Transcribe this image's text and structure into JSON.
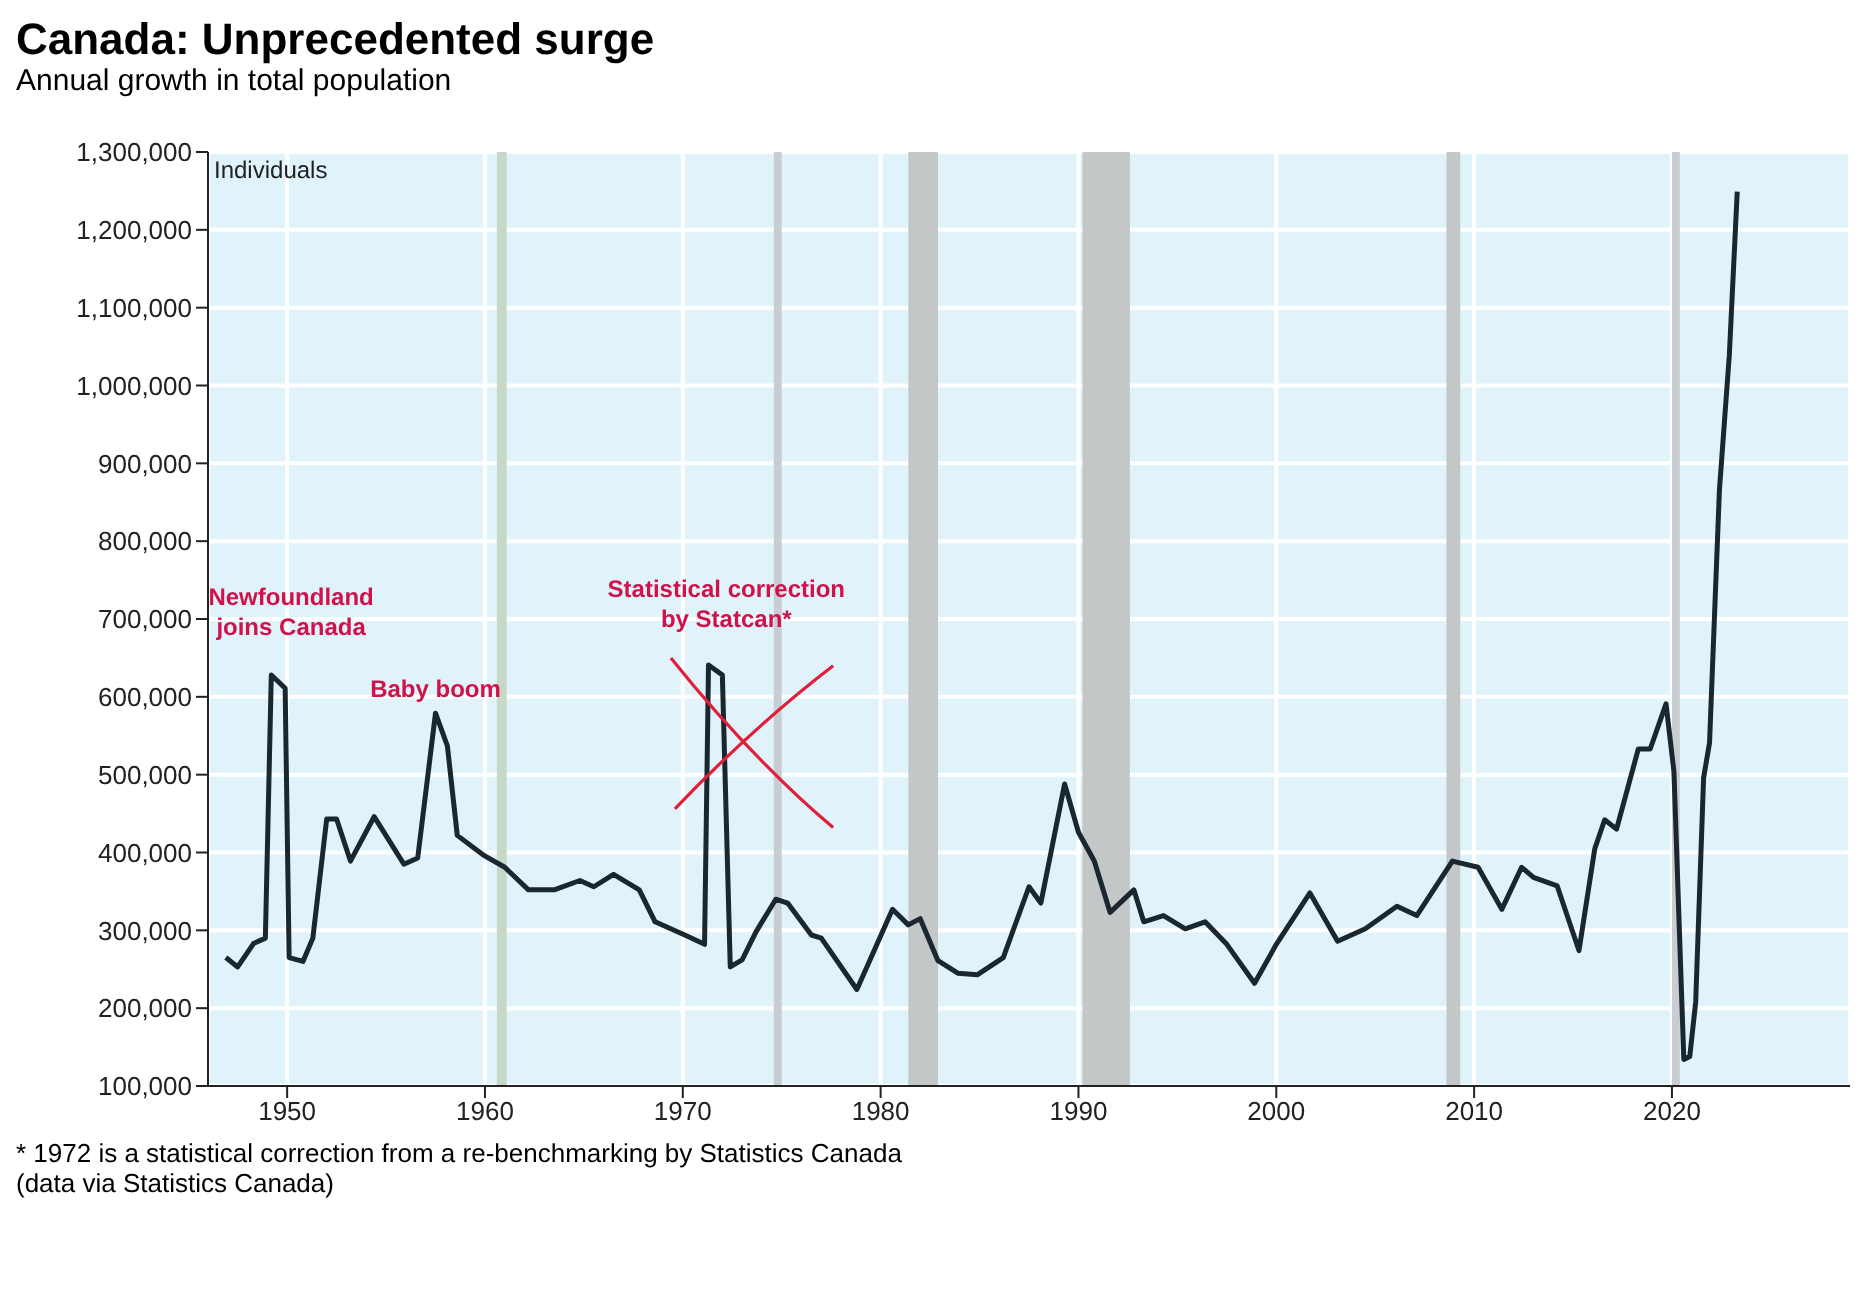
{
  "chart_data": {
    "type": "line",
    "title": "Canada: Unprecedented surge",
    "subtitle": "Annual growth in total population",
    "ylabel": "Individuals",
    "x": [
      1946.9,
      1947.5,
      1948.3,
      1948.9,
      1949.2,
      1949.9,
      1950.1,
      1950.8,
      1951.3,
      1952.0,
      1952.5,
      1953.2,
      1954.4,
      1955.9,
      1956.6,
      1957.5,
      1958.1,
      1958.6,
      1959.9,
      1961.0,
      1962.2,
      1963.5,
      1964.8,
      1965.5,
      1966.5,
      1967.8,
      1968.6,
      1970.1,
      1971.1,
      1971.3,
      1972.0,
      1972.4,
      1973.0,
      1973.7,
      1974.7,
      1975.3,
      1976.5,
      1977.0,
      1978.8,
      1980.6,
      1981.4,
      1982.0,
      1982.9,
      1983.9,
      1984.9,
      1986.2,
      1987.5,
      1988.1,
      1989.3,
      1990.0,
      1990.8,
      1991.6,
      1992.8,
      1993.3,
      1994.3,
      1995.4,
      1996.4,
      1997.5,
      1998.9,
      2000.0,
      2001.7,
      2003.1,
      2004.5,
      2006.1,
      2007.1,
      2008.9,
      2010.2,
      2011.4,
      2012.4,
      2013.0,
      2014.2,
      2015.3,
      2016.1,
      2016.6,
      2017.2,
      2018.3,
      2018.9,
      2019.7,
      2020.1,
      2020.6,
      2020.9,
      2021.2,
      2021.6,
      2021.9,
      2022.4,
      2022.9,
      2023.3
    ],
    "series": [
      {
        "color": "#1a2630",
        "values": [
          265000,
          253000,
          283000,
          290000,
          628000,
          611000,
          265000,
          260000,
          290000,
          443000,
          443000,
          389000,
          446000,
          385000,
          393000,
          579000,
          537000,
          422000,
          397000,
          381000,
          352000,
          352000,
          364000,
          356000,
          372000,
          352000,
          311000,
          294000,
          282000,
          641000,
          628000,
          253000,
          262000,
          298000,
          340000,
          335000,
          294000,
          290000,
          224000,
          327000,
          307000,
          315000,
          261000,
          245000,
          243000,
          265000,
          356000,
          335000,
          488000,
          426000,
          389000,
          323000,
          352000,
          311000,
          319000,
          302000,
          311000,
          282000,
          232000,
          282000,
          348000,
          286000,
          302000,
          331000,
          319000,
          389000,
          381000,
          327000,
          381000,
          368000,
          357000,
          274000,
          405000,
          442000,
          430000,
          533000,
          533000,
          591000,
          504000,
          134000,
          138000,
          208000,
          496000,
          541000,
          866000,
          1039000,
          1249000
        ]
      }
    ],
    "xlim": [
      1946,
      2029
    ],
    "xticks": [
      1950,
      1960,
      1970,
      1980,
      1990,
      2000,
      2010,
      2020
    ],
    "ylim": [
      100000,
      1300000
    ],
    "yticks": [
      {
        "value": 100000,
        "label": "100,000"
      },
      {
        "value": 200000,
        "label": "200,000"
      },
      {
        "value": 300000,
        "label": "300,000"
      },
      {
        "value": 400000,
        "label": "400,000"
      },
      {
        "value": 500000,
        "label": "500,000"
      },
      {
        "value": 600000,
        "label": "600,000"
      },
      {
        "value": 700000,
        "label": "700,000"
      },
      {
        "value": 800000,
        "label": "800,000"
      },
      {
        "value": 900000,
        "label": "900,000"
      },
      {
        "value": 1000000,
        "label": "1,000,000"
      },
      {
        "value": 1100000,
        "label": "1,100,000"
      },
      {
        "value": 1200000,
        "label": "1,200,000"
      },
      {
        "value": 1300000,
        "label": "1,300,000"
      }
    ],
    "bands": [
      {
        "axis": "x",
        "from": 1960.6,
        "to": 1961.1,
        "color": "#c8d8c8"
      },
      {
        "axis": "x",
        "from": 1974.6,
        "to": 1975.0,
        "color": "#c8cdd2"
      },
      {
        "axis": "x",
        "from": 1981.4,
        "to": 1982.9,
        "color": "#c4c7c8"
      },
      {
        "axis": "x",
        "from": 1990.2,
        "to": 1992.6,
        "color": "#c4c7c8"
      },
      {
        "axis": "x",
        "from": 2008.6,
        "to": 2009.3,
        "color": "#c4c7c8"
      },
      {
        "axis": "x",
        "from": 2020.0,
        "to": 2020.4,
        "color": "#c8cdd2"
      }
    ],
    "annotations": [
      "Newfoundland joins Canada",
      "Baby boom",
      "Statistical correction by Statcan*",
      "* 1972 is a statistical correction from a re-benchmarking by Statistics Canada",
      "(data via Statistics Canada)"
    ],
    "grid": true,
    "line_style": "solid",
    "marker": "none"
  }
}
